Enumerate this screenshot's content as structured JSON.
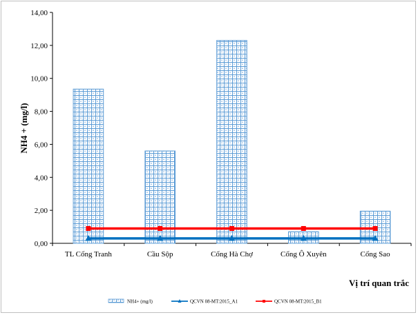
{
  "chart_data": {
    "type": "bar",
    "ylabel": "NH4 + (mg/l)",
    "xlabel": "Vị trí quan trắc",
    "ylim": [
      0,
      14
    ],
    "yticks": [
      "0,00",
      "2,00",
      "4,00",
      "6,00",
      "8,00",
      "10,00",
      "12,00",
      "14,00"
    ],
    "categories": [
      "TL Cống Tranh",
      "Cầu Sộp",
      "Cống Hà Chợ",
      "Cống Ô Xuyên",
      "Cống Sao"
    ],
    "series": [
      {
        "name": "NH4+ (mg/l)",
        "type": "bar",
        "values": [
          9.35,
          5.6,
          12.3,
          0.7,
          1.95
        ],
        "color": "#5b9bd5"
      },
      {
        "name": "QCVN 08-MT:2015_A1",
        "type": "line",
        "values": [
          0.3,
          0.3,
          0.3,
          0.3,
          0.3
        ],
        "color": "#0070c0",
        "marker": "triangle"
      },
      {
        "name": "QCVN 08-MT:2015_B1",
        "type": "line",
        "values": [
          0.9,
          0.9,
          0.9,
          0.9,
          0.9
        ],
        "color": "#ff0000",
        "marker": "square"
      }
    ],
    "grid": false,
    "legend_position": "bottom"
  }
}
